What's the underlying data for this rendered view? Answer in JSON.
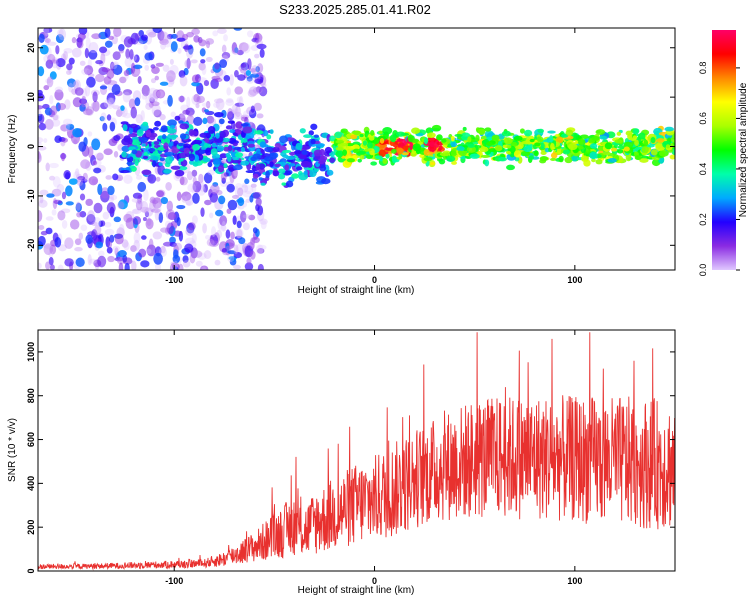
{
  "title": "S233.2025.285.01.41.R02",
  "colors": {
    "frame": "#000000",
    "snr_line": "#e8312f",
    "background": "#ffffff"
  },
  "chart_data": [
    {
      "type": "heatmap",
      "name": "spectrogram",
      "xlabel": "Height of straight line (km)",
      "ylabel": "Frequency (Hz)",
      "xlim": [
        -168,
        150
      ],
      "ylim": [
        -25,
        24
      ],
      "x_ticks": [
        -100,
        0,
        100
      ],
      "y_ticks": [
        -20,
        -10,
        0,
        10,
        20
      ],
      "colorbar": {
        "label": "Normalized spectral amplitude",
        "range": [
          0.0,
          0.95
        ],
        "ticks": [
          "0.0",
          "0.2",
          "0.4",
          "0.6",
          "0.8"
        ],
        "colormap": [
          "#e0c8ff",
          "#8a2be2",
          "#2200ff",
          "#00aaff",
          "#00ffaa",
          "#00ff00",
          "#aaff00",
          "#ffff00",
          "#ff8800",
          "#ff0000",
          "#ff0066"
        ]
      },
      "description_values": {
        "signal_band_center_hz": 0,
        "signal_band_halfwidth_hz": 3,
        "noise_region_x_max_km": -75,
        "peak_amplitude_x_km": [
          5,
          15,
          30
        ]
      }
    },
    {
      "type": "line",
      "name": "snr",
      "xlabel": "Height of straight line (km)",
      "ylabel": "SNR (10 * v/v)",
      "xlim": [
        -168,
        150
      ],
      "ylim": [
        0,
        1100
      ],
      "x_ticks": [
        -100,
        0,
        100
      ],
      "y_ticks": [
        0,
        200,
        400,
        600,
        800,
        1000
      ],
      "envelope": {
        "x": [
          -168,
          -140,
          -100,
          -85,
          -75,
          -60,
          -50,
          -40,
          -35,
          -30,
          -20,
          -10,
          0,
          10,
          20,
          30,
          40,
          50,
          60,
          80,
          100,
          120,
          140,
          150
        ],
        "mean": [
          20,
          22,
          30,
          35,
          55,
          110,
          160,
          210,
          180,
          220,
          260,
          300,
          330,
          370,
          420,
          460,
          490,
          510,
          520,
          520,
          510,
          500,
          490,
          480
        ],
        "spread": [
          12,
          12,
          18,
          20,
          35,
          70,
          110,
          140,
          120,
          150,
          170,
          190,
          200,
          220,
          230,
          240,
          260,
          280,
          280,
          290,
          290,
          300,
          300,
          300
        ]
      },
      "peak_max": 1090
    }
  ]
}
